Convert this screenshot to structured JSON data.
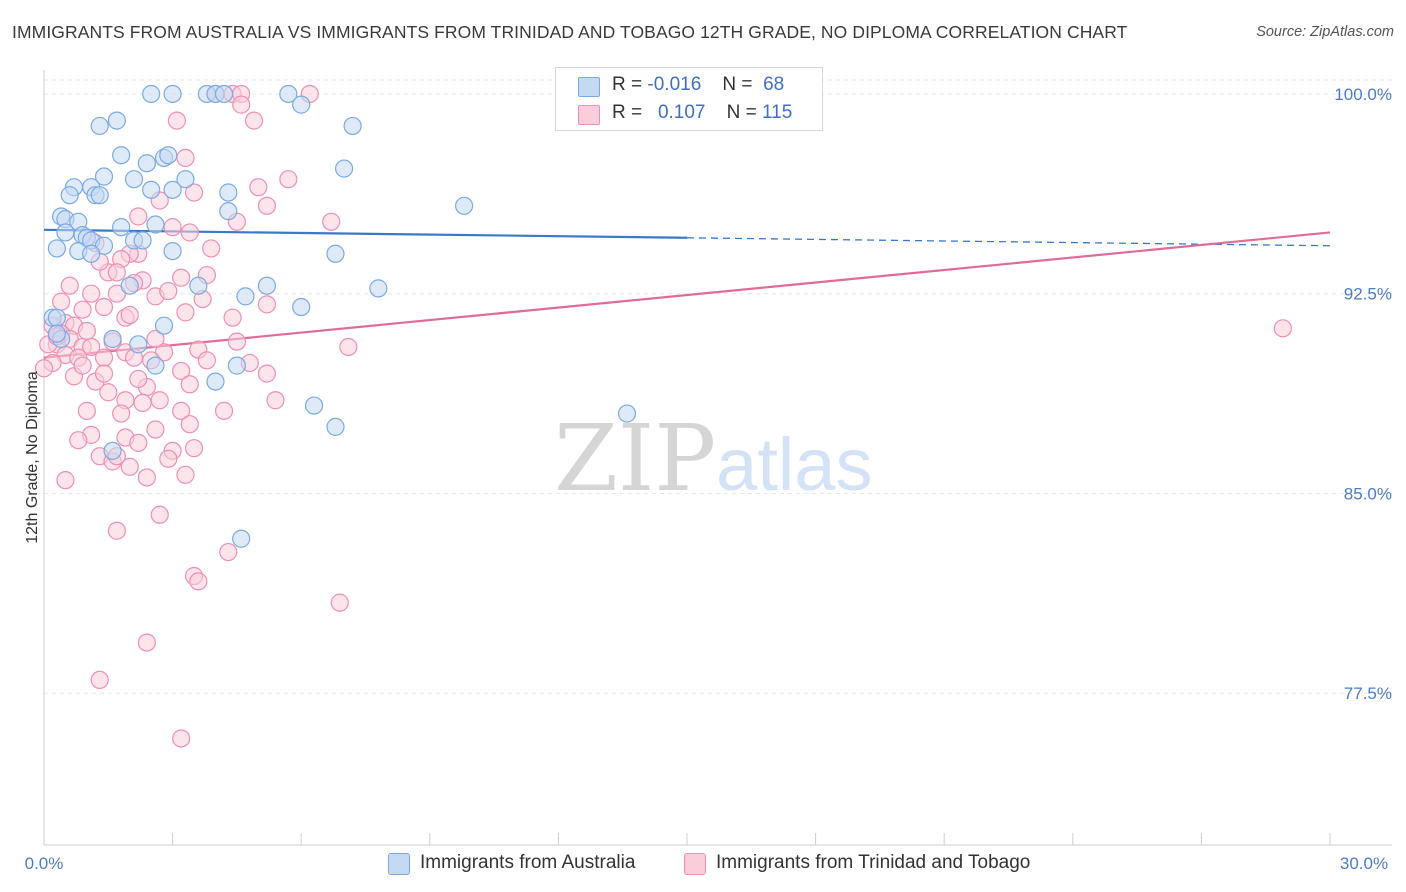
{
  "title": "IMMIGRANTS FROM AUSTRALIA VS IMMIGRANTS FROM TRINIDAD AND TOBAGO 12TH GRADE, NO DIPLOMA CORRELATION CHART",
  "source": "Source: ZipAtlas.com",
  "watermark": {
    "zip": "ZIP",
    "atlas": "atlas"
  },
  "legend": {
    "rows": [
      {
        "r_label": "R =",
        "r_value": "-0.016",
        "n_label": "N =",
        "n_value": "68"
      },
      {
        "r_label": "R =",
        "r_value": "0.107",
        "n_label": "N =",
        "n_value": "115"
      }
    ]
  },
  "colors": {
    "australia": "#7aaae6",
    "australia_fill": "#c5d9f3",
    "australia_line": "#3a78c9",
    "trinidad": "#f08fb1",
    "trinidad_fill": "#f9cdda",
    "trinidad_line": "#e06a98",
    "axis_text": "#4a7cc9",
    "grid": "#e6e6e6"
  },
  "chart_data": {
    "type": "scatter",
    "title": "IMMIGRANTS FROM AUSTRALIA VS IMMIGRANTS FROM TRINIDAD AND TOBAGO 12TH GRADE, NO DIPLOMA CORRELATION CHART",
    "xlabel": "",
    "ylabel": "12th Grade, No Diploma",
    "xlim": [
      0,
      30
    ],
    "ylim": [
      71.8,
      100.9
    ],
    "x_tick_labels": [
      "0.0%",
      "30.0%"
    ],
    "y_ticks": [
      77.5,
      85.0,
      92.5,
      100.0
    ],
    "y_tick_labels": [
      "77.5%",
      "85.0%",
      "92.5%",
      "100.0%"
    ],
    "grid": "horizontal dashed",
    "legend_position": "top-center",
    "series": [
      {
        "name": "Immigrants from Australia",
        "r": -0.016,
        "n": 68,
        "trend": {
          "x": [
            0,
            30
          ],
          "y": [
            94.9,
            94.3
          ],
          "solid_until_x": 15
        },
        "points": [
          [
            2.5,
            100.0
          ],
          [
            3.0,
            100.0
          ],
          [
            3.8,
            100.0
          ],
          [
            4.0,
            100.0
          ],
          [
            5.7,
            100.0
          ],
          [
            6.0,
            99.6
          ],
          [
            4.2,
            100.0
          ],
          [
            12.8,
            100.0
          ],
          [
            1.3,
            98.8
          ],
          [
            1.7,
            99.0
          ],
          [
            7.2,
            98.8
          ],
          [
            1.8,
            97.7
          ],
          [
            2.8,
            97.6
          ],
          [
            2.9,
            97.7
          ],
          [
            2.4,
            97.4
          ],
          [
            7.0,
            97.2
          ],
          [
            2.1,
            96.8
          ],
          [
            3.3,
            96.8
          ],
          [
            1.4,
            96.9
          ],
          [
            0.7,
            96.5
          ],
          [
            1.1,
            96.5
          ],
          [
            0.6,
            96.2
          ],
          [
            1.2,
            96.2
          ],
          [
            3.0,
            96.4
          ],
          [
            2.5,
            96.4
          ],
          [
            4.3,
            96.3
          ],
          [
            1.3,
            96.2
          ],
          [
            9.8,
            95.8
          ],
          [
            4.3,
            95.6
          ],
          [
            0.4,
            95.4
          ],
          [
            0.5,
            95.3
          ],
          [
            0.8,
            95.2
          ],
          [
            1.8,
            95.0
          ],
          [
            2.6,
            95.1
          ],
          [
            0.5,
            94.8
          ],
          [
            0.9,
            94.7
          ],
          [
            1.0,
            94.6
          ],
          [
            1.1,
            94.5
          ],
          [
            2.1,
            94.5
          ],
          [
            2.3,
            94.5
          ],
          [
            1.4,
            94.3
          ],
          [
            0.3,
            94.2
          ],
          [
            0.8,
            94.1
          ],
          [
            1.1,
            94.0
          ],
          [
            3.0,
            94.1
          ],
          [
            6.8,
            94.0
          ],
          [
            2.0,
            92.8
          ],
          [
            5.2,
            92.8
          ],
          [
            7.8,
            92.7
          ],
          [
            3.6,
            92.8
          ],
          [
            4.7,
            92.4
          ],
          [
            6.0,
            92.0
          ],
          [
            0.2,
            91.6
          ],
          [
            0.3,
            91.6
          ],
          [
            2.8,
            91.3
          ],
          [
            1.6,
            90.8
          ],
          [
            0.4,
            90.8
          ],
          [
            2.2,
            90.6
          ],
          [
            4.5,
            89.8
          ],
          [
            4.0,
            89.2
          ],
          [
            2.6,
            89.8
          ],
          [
            6.3,
            88.3
          ],
          [
            13.6,
            88.0
          ],
          [
            6.8,
            87.5
          ],
          [
            1.6,
            86.6
          ],
          [
            4.6,
            83.3
          ],
          [
            12.8,
            100.0
          ],
          [
            0.3,
            91.0
          ]
        ]
      },
      {
        "name": "Immigrants from Trinidad and Tobago",
        "r": 0.107,
        "n": 115,
        "trend": {
          "x": [
            0,
            30
          ],
          "y": [
            90.1,
            94.8
          ]
        },
        "points": [
          [
            4.0,
            100.0
          ],
          [
            4.4,
            100.0
          ],
          [
            4.6,
            100.0
          ],
          [
            6.2,
            100.0
          ],
          [
            4.6,
            99.6
          ],
          [
            3.1,
            99.0
          ],
          [
            4.9,
            99.0
          ],
          [
            3.3,
            97.6
          ],
          [
            5.7,
            96.8
          ],
          [
            3.5,
            96.3
          ],
          [
            2.7,
            96.0
          ],
          [
            5.2,
            95.8
          ],
          [
            2.2,
            95.4
          ],
          [
            3.0,
            95.0
          ],
          [
            3.4,
            94.8
          ],
          [
            6.7,
            95.2
          ],
          [
            3.9,
            94.2
          ],
          [
            2.2,
            94.0
          ],
          [
            2.0,
            94.0
          ],
          [
            1.2,
            94.4
          ],
          [
            1.8,
            93.8
          ],
          [
            1.5,
            93.3
          ],
          [
            2.3,
            93.0
          ],
          [
            3.2,
            93.1
          ],
          [
            3.8,
            93.2
          ],
          [
            1.1,
            92.5
          ],
          [
            1.4,
            92.0
          ],
          [
            1.7,
            92.5
          ],
          [
            0.4,
            92.2
          ],
          [
            0.9,
            91.9
          ],
          [
            1.9,
            91.6
          ],
          [
            2.6,
            92.4
          ],
          [
            3.3,
            91.8
          ],
          [
            5.2,
            92.1
          ],
          [
            4.4,
            91.6
          ],
          [
            2.0,
            91.7
          ],
          [
            0.5,
            91.4
          ],
          [
            0.2,
            91.3
          ],
          [
            0.7,
            91.3
          ],
          [
            0.4,
            91.0
          ],
          [
            0.6,
            90.8
          ],
          [
            0.3,
            90.6
          ],
          [
            0.1,
            90.6
          ],
          [
            0.9,
            90.5
          ],
          [
            1.1,
            90.5
          ],
          [
            1.6,
            90.7
          ],
          [
            1.9,
            90.3
          ],
          [
            2.8,
            90.3
          ],
          [
            3.6,
            90.4
          ],
          [
            4.5,
            90.7
          ],
          [
            0.5,
            90.2
          ],
          [
            0.8,
            90.1
          ],
          [
            1.4,
            90.1
          ],
          [
            2.1,
            90.1
          ],
          [
            2.5,
            90.0
          ],
          [
            3.2,
            89.6
          ],
          [
            4.8,
            89.9
          ],
          [
            0.2,
            89.9
          ],
          [
            0.0,
            89.7
          ],
          [
            0.7,
            89.4
          ],
          [
            1.2,
            89.2
          ],
          [
            2.4,
            89.0
          ],
          [
            3.4,
            89.1
          ],
          [
            5.2,
            89.5
          ],
          [
            1.5,
            88.8
          ],
          [
            1.9,
            88.5
          ],
          [
            2.3,
            88.4
          ],
          [
            2.7,
            88.5
          ],
          [
            3.2,
            88.1
          ],
          [
            4.2,
            88.1
          ],
          [
            1.0,
            88.1
          ],
          [
            1.8,
            88.0
          ],
          [
            2.6,
            87.4
          ],
          [
            3.4,
            87.6
          ],
          [
            1.1,
            87.2
          ],
          [
            1.9,
            87.1
          ],
          [
            2.2,
            86.9
          ],
          [
            3.0,
            86.6
          ],
          [
            3.5,
            86.7
          ],
          [
            1.3,
            86.4
          ],
          [
            1.6,
            86.2
          ],
          [
            2.0,
            86.0
          ],
          [
            2.4,
            85.6
          ],
          [
            3.3,
            85.7
          ],
          [
            2.7,
            84.2
          ],
          [
            1.7,
            83.6
          ],
          [
            4.3,
            82.8
          ],
          [
            3.5,
            81.9
          ],
          [
            3.6,
            81.7
          ],
          [
            6.9,
            80.9
          ],
          [
            2.4,
            79.4
          ],
          [
            1.3,
            78.0
          ],
          [
            3.2,
            75.8
          ],
          [
            28.9,
            91.2
          ],
          [
            7.1,
            90.5
          ],
          [
            5.0,
            96.5
          ],
          [
            4.5,
            95.2
          ],
          [
            1.3,
            93.7
          ],
          [
            1.7,
            93.3
          ],
          [
            2.1,
            92.9
          ],
          [
            2.9,
            92.6
          ],
          [
            3.7,
            92.3
          ],
          [
            0.6,
            92.8
          ],
          [
            1.0,
            91.1
          ],
          [
            0.3,
            90.9
          ],
          [
            2.6,
            90.8
          ],
          [
            3.8,
            90.0
          ],
          [
            0.9,
            89.8
          ],
          [
            1.4,
            89.5
          ],
          [
            2.2,
            89.3
          ],
          [
            5.4,
            88.5
          ],
          [
            0.8,
            87.0
          ],
          [
            1.7,
            86.4
          ],
          [
            2.9,
            86.3
          ],
          [
            0.5,
            85.5
          ]
        ]
      }
    ]
  },
  "bottom_legend": [
    {
      "label": "Immigrants from Australia"
    },
    {
      "label": "Immigrants from Trinidad and Tobago"
    }
  ]
}
